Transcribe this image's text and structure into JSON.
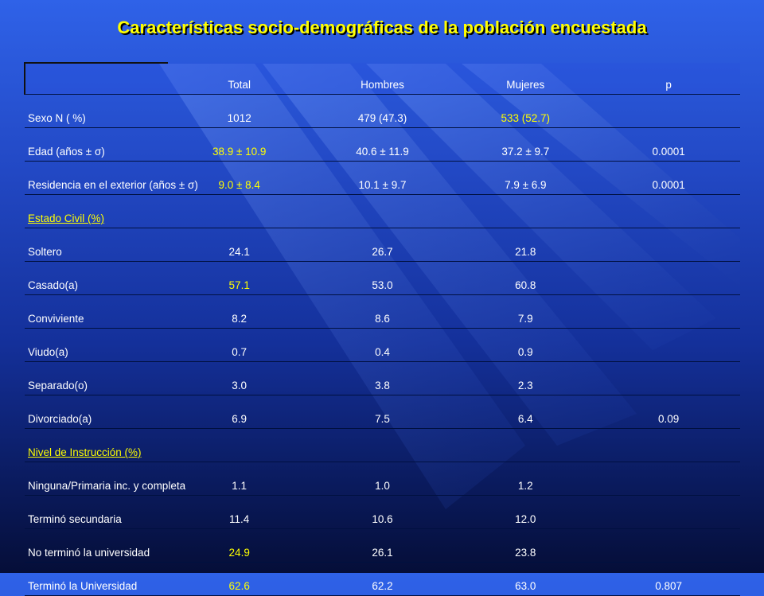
{
  "title": "Características socio-demográficas de la población encuestada",
  "colors": {
    "accent": "#ffff00",
    "text": "#ffffff",
    "background": "#1f45c8"
  },
  "table": {
    "headers": [
      "",
      "Total",
      "Hombres",
      "Mujeres",
      "p"
    ],
    "rows": [
      {
        "label": "Sexo  N  ( %)",
        "total": "1012",
        "hombres": "479 (47.3)",
        "mujeres": "533 (52.7)",
        "p": ""
      },
      {
        "label": "Edad (años ± σ)",
        "total": "38.9 ± 10.9",
        "hombres": "40.6 ± 11.9",
        "mujeres": "37.2  ± 9.7",
        "p": "0.0001"
      },
      {
        "label": "Residencia en el exterior (años ± σ)",
        "total": "9.0 ± 8.4",
        "hombres": "10.1 ± 9.7",
        "mujeres": "7.9 ± 6.9",
        "p": "0.0001"
      },
      {
        "label": "Estado Civil (%)",
        "total": "",
        "hombres": "",
        "mujeres": "",
        "p": ""
      },
      {
        "label": "Soltero",
        "total": "24.1",
        "hombres": "26.7",
        "mujeres": "21.8",
        "p": ""
      },
      {
        "label": "Casado(a)",
        "total": "57.1",
        "hombres": "53.0",
        "mujeres": "60.8",
        "p": ""
      },
      {
        "label": "Conviviente",
        "total": "8.2",
        "hombres": "8.6",
        "mujeres": "7.9",
        "p": ""
      },
      {
        "label": "Viudo(a)",
        "total": "0.7",
        "hombres": "0.4",
        "mujeres": "0.9",
        "p": ""
      },
      {
        "label": "Separado(o)",
        "total": "3.0",
        "hombres": "3.8",
        "mujeres": "2.3",
        "p": ""
      },
      {
        "label": "Divorciado(a)",
        "total": "6.9",
        "hombres": "7.5",
        "mujeres": "6.4",
        "p": "0.09"
      },
      {
        "label": "Nivel de Instrucción (%)",
        "total": "",
        "hombres": "",
        "mujeres": "",
        "p": ""
      },
      {
        "label": "Ninguna/Primaria inc. y completa",
        "total": "1.1",
        "hombres": "1.0",
        "mujeres": "1.2",
        "p": ""
      },
      {
        "label": "Terminó secundaria",
        "total": "11.4",
        "hombres": "10.6",
        "mujeres": "12.0",
        "p": ""
      },
      {
        "label": "No terminó la universidad",
        "total": "24.9",
        "hombres": "26.1",
        "mujeres": "23.8",
        "p": ""
      },
      {
        "label": "Terminó la Universidad",
        "total": "62.6",
        "hombres": "62.2",
        "mujeres": "63.0",
        "p": "0.807"
      }
    ]
  }
}
